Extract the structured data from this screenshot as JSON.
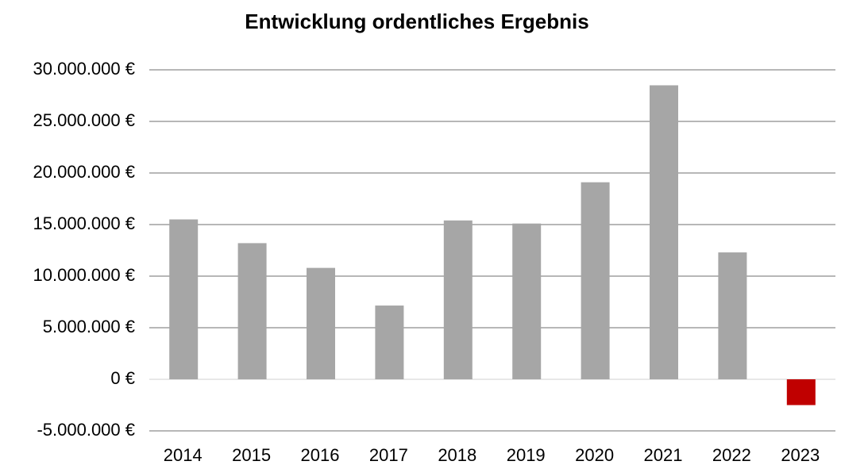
{
  "chart_data": {
    "type": "bar",
    "title": "Entwicklung ordentliches Ergebnis",
    "categories": [
      "2014",
      "2015",
      "2016",
      "2017",
      "2018",
      "2019",
      "2020",
      "2021",
      "2022",
      "2023"
    ],
    "values": [
      15500000,
      13200000,
      10800000,
      7150000,
      15400000,
      15100000,
      19100000,
      28500000,
      12300000,
      -2500000
    ],
    "colors": [
      "#a6a6a6",
      "#a6a6a6",
      "#a6a6a6",
      "#a6a6a6",
      "#a6a6a6",
      "#a6a6a6",
      "#a6a6a6",
      "#a6a6a6",
      "#a6a6a6",
      "#c00000"
    ],
    "ylim": [
      -5000000,
      30000000
    ],
    "yticks": [
      {
        "value": -5000000,
        "label": "-5.000.000 €"
      },
      {
        "value": 0,
        "label": "0 €"
      },
      {
        "value": 5000000,
        "label": "5.000.000 €"
      },
      {
        "value": 10000000,
        "label": "10.000.000 €"
      },
      {
        "value": 15000000,
        "label": "15.000.000 €"
      },
      {
        "value": 20000000,
        "label": "20.000.000 €"
      },
      {
        "value": 25000000,
        "label": "25.000.000 €"
      },
      {
        "value": 30000000,
        "label": "30.000.000 €"
      }
    ],
    "grid": true
  }
}
